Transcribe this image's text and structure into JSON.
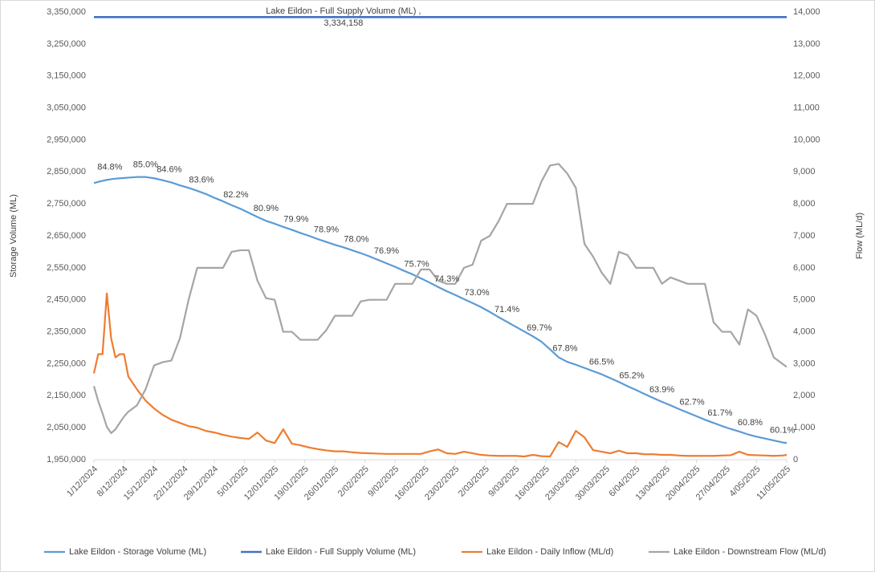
{
  "chart_data": {
    "type": "line",
    "ylabel": "Storage Volume (ML)",
    "y2label": "Flow (ML/d)",
    "legend": "bottom",
    "grid": false,
    "xlim": [
      0,
      161
    ],
    "xticks": [
      {
        "value": 0,
        "label": "1/12/2024"
      },
      {
        "value": 7,
        "label": "8/12/2024"
      },
      {
        "value": 14,
        "label": "15/12/2024"
      },
      {
        "value": 21,
        "label": "22/12/2024"
      },
      {
        "value": 28,
        "label": "29/12/2024"
      },
      {
        "value": 35,
        "label": "5/01/2025"
      },
      {
        "value": 42,
        "label": "12/01/2025"
      },
      {
        "value": 49,
        "label": "19/01/2025"
      },
      {
        "value": 56,
        "label": "26/01/2025"
      },
      {
        "value": 63,
        "label": "2/02/2025"
      },
      {
        "value": 70,
        "label": "9/02/2025"
      },
      {
        "value": 77,
        "label": "16/02/2025"
      },
      {
        "value": 84,
        "label": "23/02/2025"
      },
      {
        "value": 91,
        "label": "2/03/2025"
      },
      {
        "value": 98,
        "label": "9/03/2025"
      },
      {
        "value": 105,
        "label": "16/03/2025"
      },
      {
        "value": 112,
        "label": "23/03/2025"
      },
      {
        "value": 119,
        "label": "30/03/2025"
      },
      {
        "value": 126,
        "label": "6/04/2025"
      },
      {
        "value": 133,
        "label": "13/04/2025"
      },
      {
        "value": 140,
        "label": "20/04/2025"
      },
      {
        "value": 147,
        "label": "27/04/2025"
      },
      {
        "value": 154,
        "label": "4/05/2025"
      },
      {
        "value": 161,
        "label": "11/05/2025"
      }
    ],
    "ylim": [
      1950000,
      3350000
    ],
    "yticks": [
      {
        "value": 1950000,
        "label": "1,950,000"
      },
      {
        "value": 2050000,
        "label": "2,050,000"
      },
      {
        "value": 2150000,
        "label": "2,150,000"
      },
      {
        "value": 2250000,
        "label": "2,250,000"
      },
      {
        "value": 2350000,
        "label": "2,350,000"
      },
      {
        "value": 2450000,
        "label": "2,450,000"
      },
      {
        "value": 2550000,
        "label": "2,550,000"
      },
      {
        "value": 2650000,
        "label": "2,650,000"
      },
      {
        "value": 2750000,
        "label": "2,750,000"
      },
      {
        "value": 2850000,
        "label": "2,850,000"
      },
      {
        "value": 2950000,
        "label": "2,950,000"
      },
      {
        "value": 3050000,
        "label": "3,050,000"
      },
      {
        "value": 3150000,
        "label": "3,150,000"
      },
      {
        "value": 3250000,
        "label": "3,250,000"
      },
      {
        "value": 3350000,
        "label": "3,350,000"
      }
    ],
    "y2lim": [
      0,
      14000
    ],
    "y2ticks": [
      0,
      {
        "value": 1000,
        "label": "1,000"
      },
      {
        "value": 2000,
        "label": "2,000"
      },
      {
        "value": 3000,
        "label": "3,000"
      },
      {
        "value": 4000,
        "label": "4,000"
      },
      {
        "value": 5000,
        "label": "5,000"
      },
      {
        "value": 6000,
        "label": "6,000"
      },
      {
        "value": 7000,
        "label": "7,000"
      },
      {
        "value": 8000,
        "label": "8,000"
      },
      {
        "value": 9000,
        "label": "9,000"
      },
      {
        "value": 10000,
        "label": "10,000"
      },
      {
        "value": 11000,
        "label": "11,000"
      },
      {
        "value": 12000,
        "label": "12,000"
      },
      {
        "value": 13000,
        "label": "13,000"
      },
      {
        "value": 14000,
        "label": "14,000"
      }
    ],
    "x": [
      0,
      1,
      2,
      3,
      4,
      5,
      6,
      7,
      8,
      10,
      12,
      14,
      16,
      18,
      20,
      22,
      24,
      26,
      28,
      30,
      32,
      34,
      36,
      38,
      40,
      42,
      44,
      46,
      48,
      50,
      52,
      54,
      56,
      58,
      60,
      62,
      64,
      66,
      68,
      70,
      72,
      74,
      76,
      78,
      80,
      82,
      84,
      86,
      88,
      90,
      92,
      94,
      96,
      98,
      100,
      102,
      104,
      106,
      108,
      110,
      112,
      114,
      116,
      118,
      120,
      122,
      124,
      126,
      128,
      130,
      132,
      134,
      136,
      138,
      140,
      142,
      144,
      146,
      148,
      150,
      152,
      154,
      156,
      158,
      160,
      161
    ],
    "series": [
      {
        "name": "Lake Eildon - Storage Volume (ML)",
        "color": "#5b9bd5",
        "width": 2.2,
        "values": [
          2815000,
          2819000,
          2822000,
          2825000,
          2827000,
          2829000,
          2830000,
          2831000,
          2832000,
          2834000,
          2834000,
          2830000,
          2824000,
          2817000,
          2808000,
          2800000,
          2791000,
          2781000,
          2769000,
          2758000,
          2746000,
          2735000,
          2722000,
          2709000,
          2697000,
          2688000,
          2678000,
          2669000,
          2659000,
          2650000,
          2640000,
          2631000,
          2622000,
          2614000,
          2605000,
          2596000,
          2586000,
          2575000,
          2564000,
          2553000,
          2541000,
          2530000,
          2517000,
          2504000,
          2490000,
          2477000,
          2465000,
          2452000,
          2440000,
          2427000,
          2412000,
          2396000,
          2381000,
          2366000,
          2351000,
          2336000,
          2319000,
          2295000,
          2270000,
          2256000,
          2247000,
          2237000,
          2227000,
          2217000,
          2205000,
          2193000,
          2180000,
          2168000,
          2155000,
          2143000,
          2131000,
          2120000,
          2108000,
          2097000,
          2086000,
          2075000,
          2065000,
          2055000,
          2046000,
          2038000,
          2029000,
          2022000,
          2016000,
          2010000,
          2004000,
          2002000
        ]
      },
      {
        "name": "Lake Eildon - Full Supply Volume (ML)",
        "color": "#4472c4",
        "width": 2.6,
        "x": [
          0,
          58,
          161
        ],
        "values": [
          3334158,
          3334158,
          3334158
        ],
        "label_prefix": "Lake Eildon - Full Supply Volume (ML) ,",
        "value_labels": [
          null,
          "3,334,158",
          null
        ]
      },
      {
        "name": "Lake Eildon - Daily Inflow (ML/d)",
        "color": "#ed7d31",
        "width": 2.2,
        "axis": "y2",
        "values": [
          2700,
          3300,
          3300,
          5200,
          3800,
          3200,
          3300,
          3300,
          2600,
          2200,
          1850,
          1600,
          1400,
          1250,
          1150,
          1050,
          1000,
          900,
          850,
          780,
          720,
          680,
          650,
          850,
          600,
          520,
          950,
          500,
          450,
          380,
          330,
          290,
          260,
          260,
          230,
          210,
          200,
          190,
          180,
          180,
          180,
          180,
          180,
          260,
          320,
          200,
          180,
          250,
          200,
          150,
          130,
          120,
          120,
          120,
          100,
          150,
          110,
          100,
          550,
          400,
          900,
          700,
          300,
          250,
          200,
          280,
          200,
          200,
          170,
          170,
          150,
          150,
          130,
          120,
          120,
          120,
          120,
          130,
          140,
          250,
          150,
          140,
          130,
          120,
          130,
          150
        ]
      },
      {
        "name": "Lake Eildon - Downstream Flow (ML/d)",
        "color": "#a5a5a5",
        "width": 2.2,
        "axis": "y2",
        "values": [
          2300,
          1830,
          1450,
          1030,
          830,
          950,
          1150,
          1350,
          1500,
          1700,
          2200,
          2950,
          3050,
          3100,
          3800,
          5000,
          6000,
          6000,
          6000,
          6000,
          6500,
          6550,
          6550,
          5600,
          5050,
          5000,
          4000,
          4000,
          3750,
          3750,
          3750,
          4050,
          4500,
          4500,
          4500,
          4950,
          5000,
          5000,
          5000,
          5500,
          5500,
          5500,
          5950,
          5950,
          5600,
          5500,
          5500,
          6000,
          6100,
          6850,
          7000,
          7450,
          8000,
          8000,
          8000,
          8000,
          8700,
          9200,
          9250,
          8950,
          8500,
          6750,
          6350,
          5850,
          5500,
          6500,
          6400,
          6000,
          6000,
          6000,
          5500,
          5700,
          5600,
          5500,
          5500,
          5500,
          4300,
          4000,
          4000,
          3600,
          4700,
          4500,
          3900,
          3200,
          3000,
          2900
        ]
      }
    ],
    "annotations": [
      {
        "x": 3.7,
        "text": "84.8%"
      },
      {
        "x": 12,
        "text": "85.0%"
      },
      {
        "x": 17.5,
        "text": "84.6%"
      },
      {
        "x": 25,
        "text": "83.6%"
      },
      {
        "x": 33,
        "text": "82.2%"
      },
      {
        "x": 40,
        "text": "80.9%"
      },
      {
        "x": 47,
        "text": "79.9%"
      },
      {
        "x": 54,
        "text": "78.9%"
      },
      {
        "x": 61,
        "text": "78.0%"
      },
      {
        "x": 68,
        "text": "76.9%"
      },
      {
        "x": 75,
        "text": "75.7%"
      },
      {
        "x": 82,
        "text": "74.3%"
      },
      {
        "x": 89,
        "text": "73.0%"
      },
      {
        "x": 96,
        "text": "71.4%"
      },
      {
        "x": 103.5,
        "text": "69.7%"
      },
      {
        "x": 109.5,
        "text": "67.8%"
      },
      {
        "x": 118,
        "text": "66.5%"
      },
      {
        "x": 125,
        "text": "65.2%"
      },
      {
        "x": 132,
        "text": "63.9%"
      },
      {
        "x": 139,
        "text": "62.7%"
      },
      {
        "x": 145.5,
        "text": "61.7%"
      },
      {
        "x": 152.5,
        "text": "60.8%"
      },
      {
        "x": 160,
        "text": "60.1%"
      }
    ]
  }
}
